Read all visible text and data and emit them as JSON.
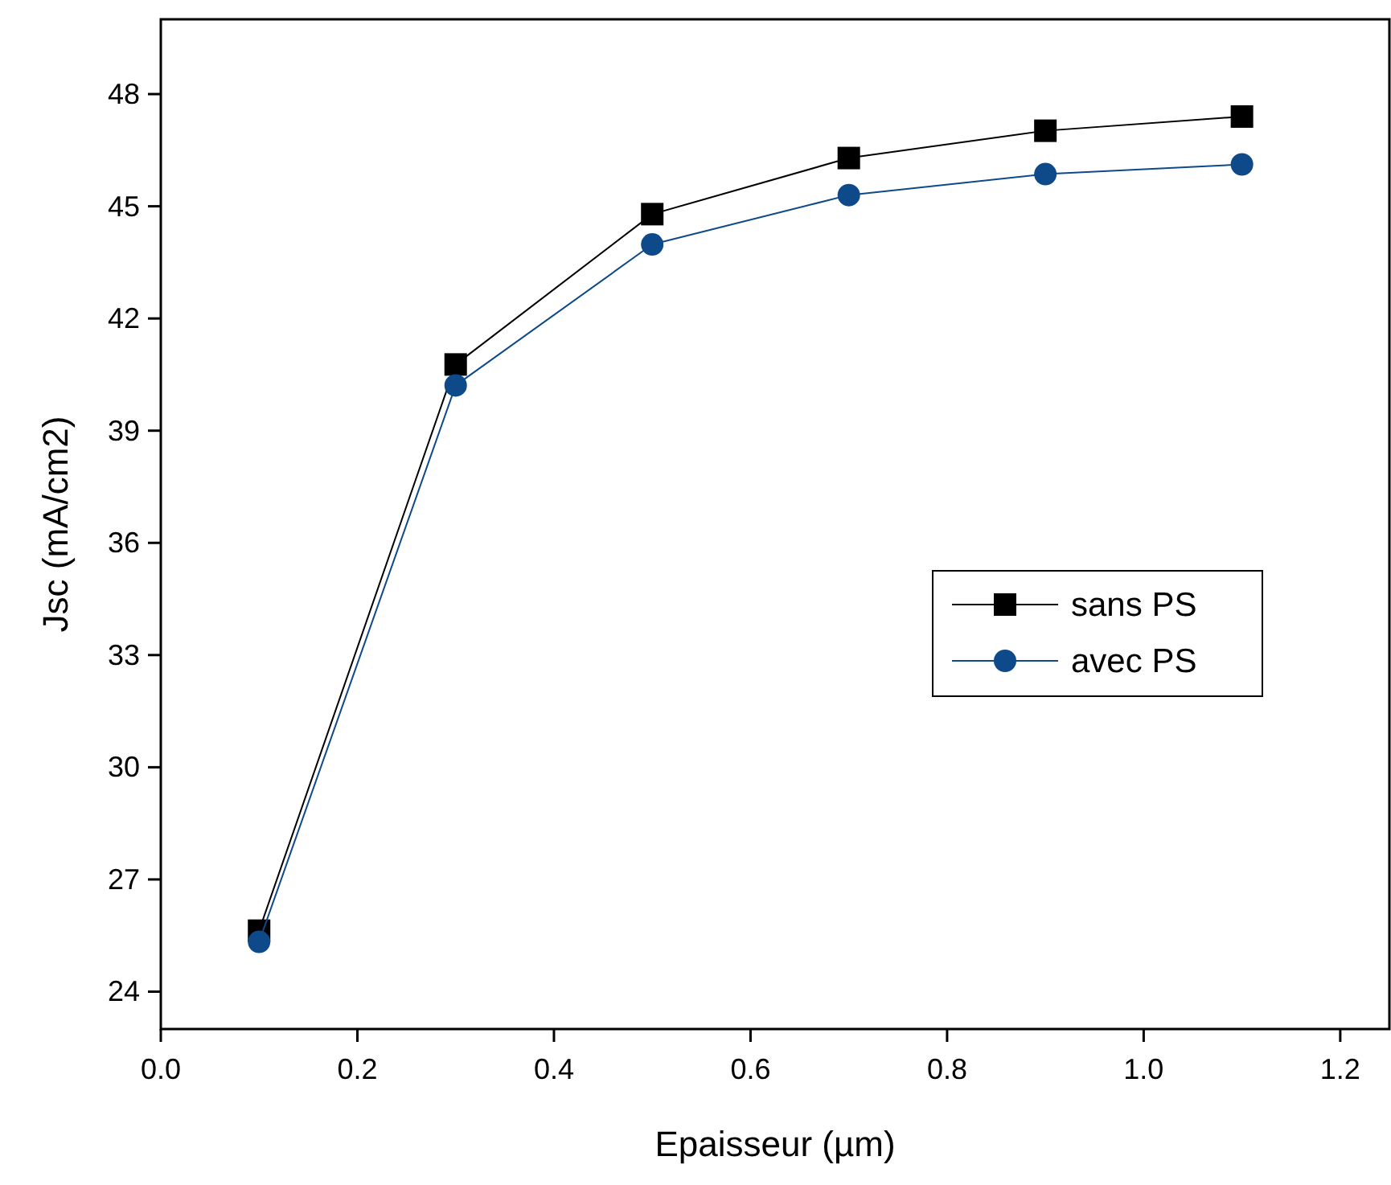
{
  "chart_data": {
    "type": "line",
    "xlabel": "Epaisseur (µm)",
    "ylabel": "Jsc (mA/cm2)",
    "x": [
      0.1,
      0.3,
      0.5,
      0.7,
      0.9,
      1.1
    ],
    "series": [
      {
        "name": "sans PS",
        "color": "#000000",
        "marker": "square",
        "values": [
          25.63,
          40.77,
          44.79,
          46.29,
          47.02,
          47.4
        ]
      },
      {
        "name": "avec PS",
        "color": "#0e4a8a",
        "marker": "circle",
        "values": [
          25.33,
          40.21,
          43.98,
          45.3,
          45.86,
          46.12
        ]
      }
    ],
    "xlim": [
      0,
      1.25
    ],
    "xticks": [
      {
        "value": 0,
        "label": "0.0"
      },
      {
        "value": 0.2,
        "label": "0.2"
      },
      {
        "value": 0.4,
        "label": "0.4"
      },
      {
        "value": 0.6,
        "label": "0.6"
      },
      {
        "value": 0.8,
        "label": "0.8"
      },
      {
        "value": 1,
        "label": "1.0"
      },
      {
        "value": 1.2,
        "label": "1.2"
      }
    ],
    "ylim": [
      23,
      50
    ],
    "yticks": [
      24,
      27,
      30,
      33,
      36,
      39,
      42,
      45,
      48
    ],
    "grid": false,
    "legend": "right",
    "line_style": "solid"
  }
}
